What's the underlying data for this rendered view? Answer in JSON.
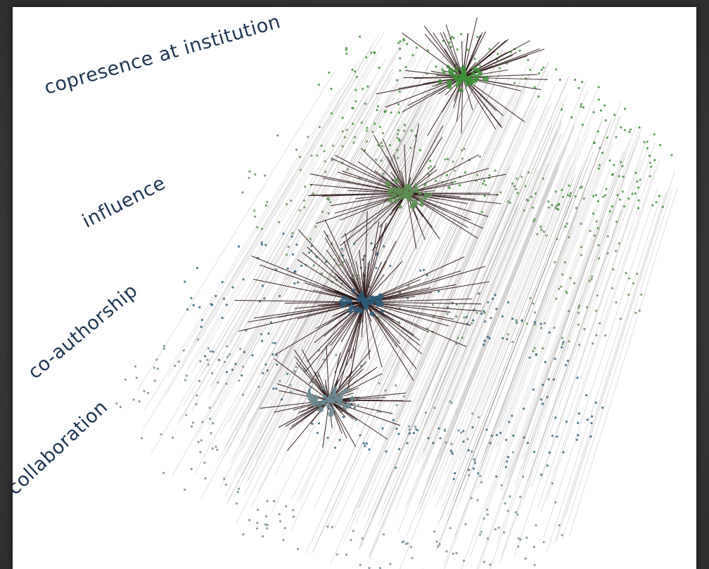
{
  "layers": [
    {
      "key": "copresence",
      "label": "copresence at institution",
      "node_color": "#3f8f3a"
    },
    {
      "key": "influence",
      "label": "influence",
      "node_color": "#5f8f55"
    },
    {
      "key": "coauthor",
      "label": "co-authorship",
      "node_color": "#2b5c78"
    },
    {
      "key": "collab",
      "label": "collaboration",
      "node_color": "#6b8a90"
    }
  ],
  "colors": {
    "background": "#ffffff",
    "interlayer_edge": "#8a7f7f",
    "intralayer_edge": "#2a1414",
    "label_text": "#1f3550"
  }
}
